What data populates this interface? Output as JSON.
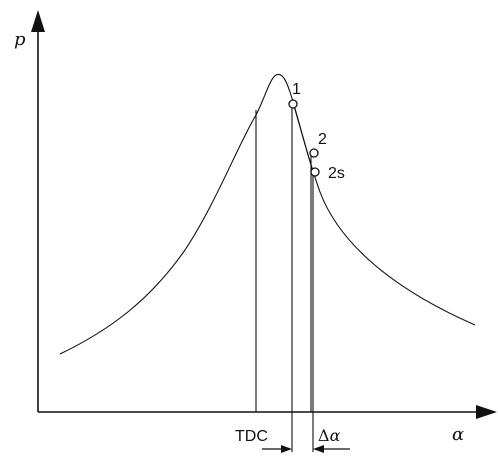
{
  "axes": {
    "y_label": "p",
    "x_label": "α"
  },
  "points": {
    "p1": "1",
    "p2": "2",
    "p2s": "2s"
  },
  "annotations": {
    "tdc": "TDC",
    "delta_symbol": "Δ",
    "delta_var": "α"
  },
  "colors": {
    "ink": "#111111",
    "background": "#ffffff"
  }
}
